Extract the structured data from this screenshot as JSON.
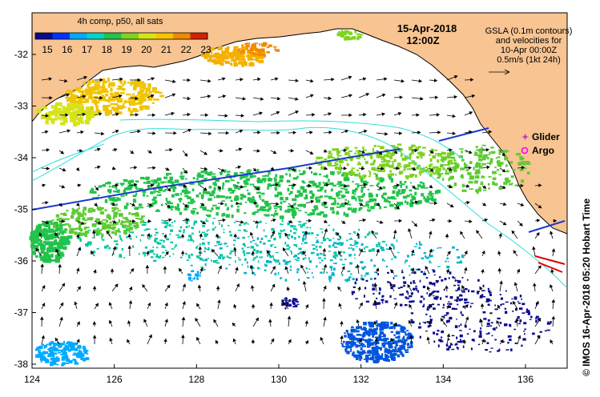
{
  "colorbar": {
    "title": "4h comp, p50, all sats",
    "ticks": [
      "15",
      "16",
      "17",
      "18",
      "19",
      "20",
      "21",
      "22",
      "23"
    ],
    "colors": [
      "#0a0a8c",
      "#0033ff",
      "#00aaff",
      "#00d4c8",
      "#22c34a",
      "#7ed321",
      "#d6e317",
      "#f5c400",
      "#f08a00",
      "#d42200"
    ]
  },
  "header": {
    "date": "15-Apr-2018",
    "time": "12:00Z"
  },
  "gsla_note": {
    "lines": [
      "GSLA (0.1m contours)",
      "and velocities for",
      "10-Apr 00:00Z",
      "0.5m/s (1kt 24h)"
    ]
  },
  "legend": {
    "glider_label": "Glider",
    "argo_label": "Argo",
    "glider_color": "#cc33cc",
    "argo_color": "#ff00ff"
  },
  "axes": {
    "x_ticks": [
      "124",
      "126",
      "128",
      "130",
      "132",
      "134",
      "136"
    ],
    "y_ticks": [
      "-32",
      "-33",
      "-34",
      "-35",
      "-36",
      "-37",
      "-38"
    ]
  },
  "credit": "© IMOS 16-Apr-2018 05:20 Hobart Time",
  "colors": {
    "land": "#f7c492",
    "contour": "#33dddd",
    "arrow": "#000000"
  }
}
